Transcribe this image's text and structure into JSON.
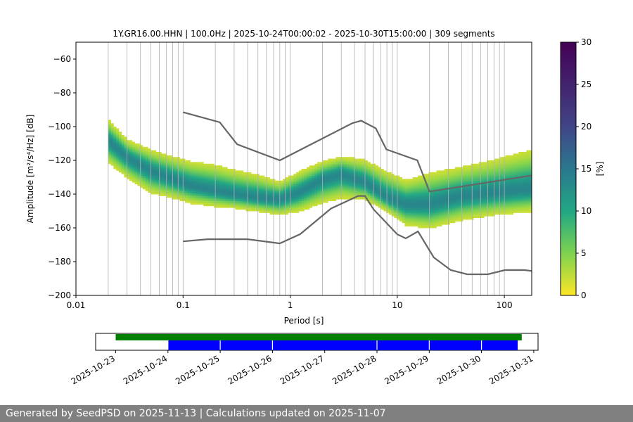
{
  "chart_data": [
    {
      "type": "heatmap",
      "title": "1Y.GR16.00.HHN | 100.0Hz | 2025-10-24T00:00:02 - 2025-10-30T15:00:00 | 309 segments",
      "xlabel": "Period [s]",
      "ylabel": "Amplitude [m²/s⁴/Hz] [dB]",
      "x_scale": "log",
      "xlim": [
        0.01,
        180
      ],
      "ylim": [
        -200,
        -50
      ],
      "x_ticks": [
        0.01,
        0.1,
        1,
        10,
        100
      ],
      "x_tick_labels": [
        "0.01",
        "0.1",
        "1",
        "10",
        "100"
      ],
      "y_ticks": [
        -200,
        -180,
        -160,
        -140,
        -120,
        -100,
        -80,
        -60
      ],
      "y_tick_labels": [
        "−200",
        "−180",
        "−160",
        "−140",
        "−120",
        "−100",
        "−80",
        "−60"
      ],
      "grid": "vertical",
      "colorbar": {
        "label": "[%]",
        "range": [
          0,
          30
        ],
        "ticks": [
          0,
          5,
          10,
          15,
          20,
          25,
          30
        ],
        "tick_labels": [
          "0",
          "5",
          "10",
          "15",
          "20",
          "25",
          "30"
        ],
        "colormap": "viridis"
      },
      "psd_density": {
        "period": [
          0.02,
          0.03,
          0.05,
          0.08,
          0.12,
          0.2,
          0.3,
          0.5,
          0.8,
          1.2,
          2,
          3,
          5,
          8,
          12,
          20,
          40,
          80,
          180
        ],
        "mode_db": [
          -108,
          -118,
          -126,
          -131,
          -135,
          -138,
          -140,
          -142,
          -143,
          -139,
          -131,
          -128,
          -133,
          -142,
          -146,
          -146,
          -141,
          -139,
          -137
        ],
        "low_db": [
          -121,
          -130,
          -139,
          -142,
          -145,
          -147,
          -148,
          -150,
          -152,
          -150,
          -145,
          -142,
          -143,
          -150,
          -158,
          -160,
          -155,
          -152,
          -150
        ],
        "high_db": [
          -96,
          -108,
          -114,
          -118,
          -121,
          -123,
          -126,
          -129,
          -133,
          -127,
          -121,
          -118,
          -120,
          -127,
          -132,
          -128,
          -124,
          -120,
          -114
        ]
      },
      "series": [
        {
          "name": "NHNM",
          "x": [
            0.1,
            0.22,
            0.32,
            0.8,
            3.8,
            4.6,
            6.3,
            7.9,
            15.4,
            20,
            354.8
          ],
          "y": [
            -91.5,
            -97.4,
            -110.5,
            -120,
            -98,
            -96.5,
            -101,
            -113.5,
            -120,
            -138.5,
            -126
          ]
        },
        {
          "name": "NLNM",
          "x": [
            0.1,
            0.17,
            0.4,
            0.8,
            1.24,
            2.4,
            4.3,
            5,
            6,
            10,
            12,
            15.6,
            21.9,
            31.6,
            45,
            70,
            101,
            154,
            328,
            600
          ],
          "y": [
            -168,
            -166.7,
            -166.7,
            -169.2,
            -163.7,
            -148.6,
            -141.1,
            -141.1,
            -149,
            -163.8,
            -166.2,
            -162.1,
            -177.5,
            -185,
            -187.5,
            -187.5,
            -185,
            -185,
            -187.5,
            -184.4
          ]
        }
      ]
    },
    {
      "type": "timeline",
      "x_ticks": [
        "2025-10-23",
        "2025-10-24",
        "2025-10-25",
        "2025-10-26",
        "2025-10-27",
        "2025-10-28",
        "2025-10-29",
        "2025-10-30",
        "2025-10-31"
      ],
      "data_span": {
        "color": "#008000",
        "start_day": 0,
        "end_day": 7.77
      },
      "psd_segments": {
        "color": "#0000ff",
        "spans": [
          [
            1,
            2
          ],
          [
            2,
            3
          ],
          [
            3,
            5
          ],
          [
            5,
            6
          ],
          [
            6,
            7
          ],
          [
            7,
            7.7
          ]
        ]
      }
    }
  ],
  "footer": {
    "text": "Generated by SeedPSD on 2025-11-13 | Calculations updated on 2025-11-07"
  }
}
